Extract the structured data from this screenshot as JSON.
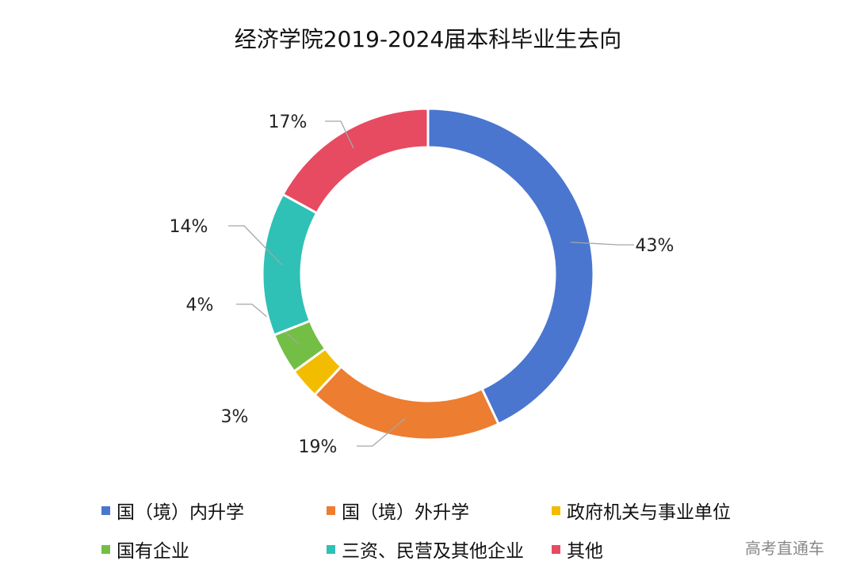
{
  "chart_data": {
    "type": "pie",
    "donut": true,
    "title": "经济学院2019-2024届本科毕业生去向",
    "categories": [
      "国（境）内升学",
      "国（境）外升学",
      "政府机关与事业单位",
      "国有企业",
      "三资、民营及其他企业",
      "其他"
    ],
    "values": [
      43,
      19,
      3,
      4,
      14,
      17
    ],
    "data_labels": [
      "43%",
      "19%",
      "3%",
      "4%",
      "14%",
      "17%"
    ],
    "colors": [
      "#4a76cf",
      "#ed7d31",
      "#f2bc00",
      "#73bf45",
      "#2fc1b5",
      "#e64b62"
    ],
    "legend_position": "bottom"
  },
  "watermark": "高考直通车"
}
